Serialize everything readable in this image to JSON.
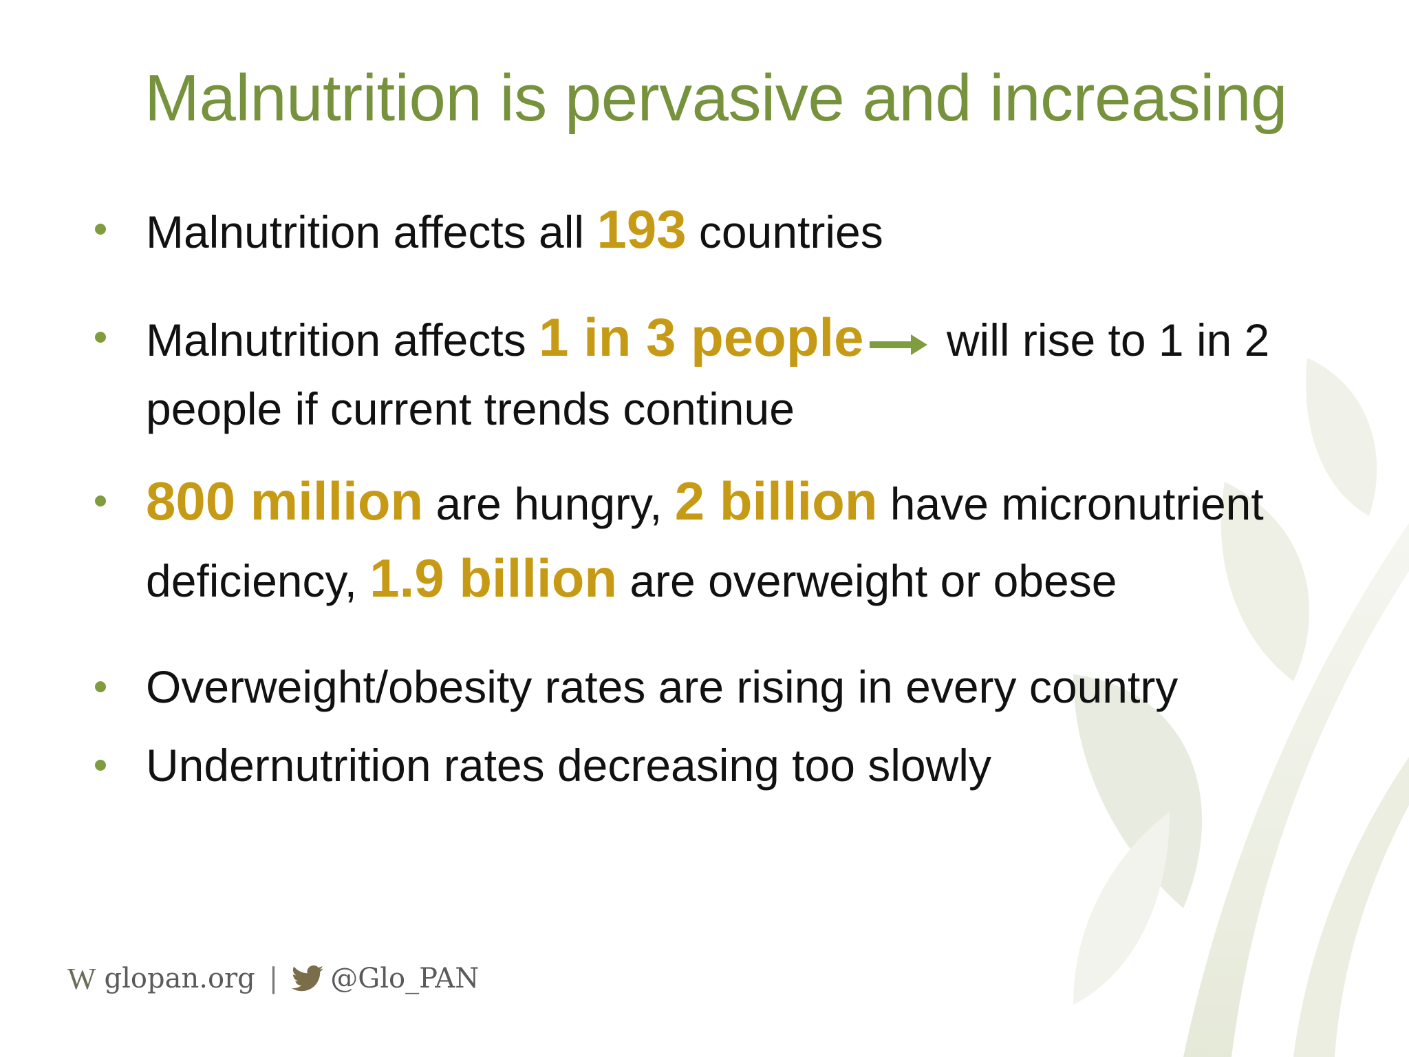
{
  "slide": {
    "title": "Malnutrition is pervasive and increasing",
    "bullets": [
      {
        "parts": [
          {
            "text": "Malnutrition affects all "
          },
          {
            "text": "193",
            "highlight": true
          },
          {
            "text": " countries"
          }
        ]
      },
      {
        "parts": [
          {
            "text": "Malnutrition affects "
          },
          {
            "text": "1 in 3 people",
            "highlight": true
          },
          {
            "text": " will rise to 1 in 2 people if current trends continue"
          }
        ]
      },
      {
        "parts": [
          {
            "text": "800 million",
            "highlight": true
          },
          {
            "text": " are hungry, "
          },
          {
            "text": "2 billion",
            "highlight": true
          },
          {
            "text": " have micronutrient deficiency, "
          },
          {
            "text": "1.9 billion",
            "highlight": true
          },
          {
            "text": " are overweight or obese"
          }
        ]
      },
      {
        "parts": [
          {
            "text": "Overweight/obesity rates are rising in every country"
          }
        ]
      },
      {
        "parts": [
          {
            "text": "Undernutrition rates decreasing too slowly"
          }
        ]
      }
    ]
  },
  "footer": {
    "web_prefix": "W",
    "website": "glopan.org",
    "separator": "|",
    "twitter_handle": "@Glo_PAN"
  },
  "colors": {
    "title": "#76923c",
    "highlight": "#c69a14",
    "bullet_dot": "#7f9d3f",
    "arrow": "#7f9d3f",
    "text": "#111111"
  },
  "icons": {
    "arrow": "right-arrow-icon",
    "twitter": "twitter-bird-icon",
    "background": "wheat-leaf-watermark"
  }
}
